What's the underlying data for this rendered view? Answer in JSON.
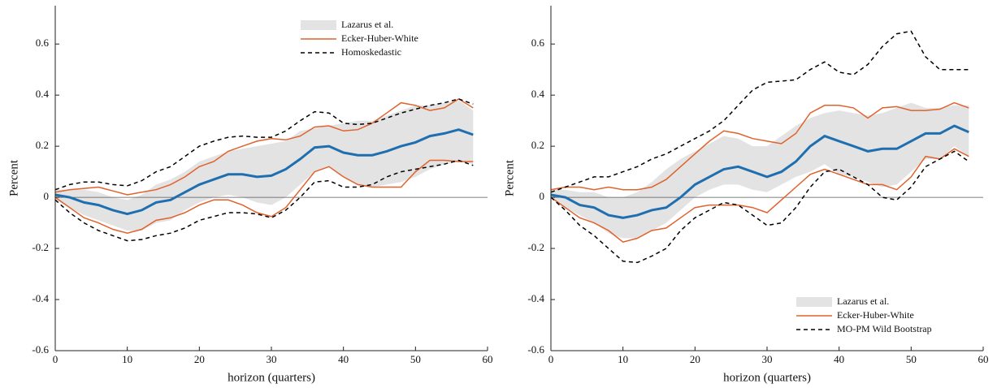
{
  "chart_data": [
    {
      "type": "line",
      "xlabel": "horizon (quarters)",
      "ylabel": "Percent",
      "legend": "upper right",
      "zero_line": true,
      "xlim": [
        0,
        60
      ],
      "xticks": [
        0,
        10,
        20,
        30,
        40,
        50,
        60
      ],
      "ylim": [
        -0.6,
        0.75
      ],
      "yticks": [
        -0.6,
        -0.4,
        -0.2,
        0,
        0.2,
        0.4,
        0.6
      ],
      "x": [
        0,
        2,
        4,
        6,
        8,
        10,
        12,
        14,
        16,
        18,
        20,
        22,
        24,
        26,
        28,
        30,
        32,
        34,
        36,
        38,
        40,
        42,
        44,
        46,
        48,
        50,
        52,
        54,
        56,
        58
      ],
      "series": [
        {
          "name": "Lazarus et al.",
          "type": "band",
          "color": "#e3e3e3",
          "upper": [
            0.03,
            0.03,
            0.03,
            0.02,
            0.0,
            -0.01,
            0.01,
            0.05,
            0.07,
            0.1,
            0.14,
            0.16,
            0.18,
            0.19,
            0.2,
            0.21,
            0.22,
            0.26,
            0.27,
            0.28,
            0.29,
            0.3,
            0.3,
            0.32,
            0.34,
            0.36,
            0.36,
            0.37,
            0.38,
            0.34
          ],
          "lower": [
            -0.01,
            -0.04,
            -0.07,
            -0.09,
            -0.11,
            -0.13,
            -0.13,
            -0.1,
            -0.09,
            -0.05,
            -0.02,
            0.0,
            0.01,
            0.0,
            -0.02,
            -0.03,
            0.0,
            0.05,
            0.1,
            0.12,
            0.08,
            0.05,
            0.04,
            0.05,
            0.06,
            0.08,
            0.11,
            0.13,
            0.14,
            0.13
          ]
        },
        {
          "name": "Ecker-Huber-White",
          "type": "interval",
          "color": "#e0622c",
          "dash": false,
          "upper": [
            0.02,
            0.03,
            0.035,
            0.04,
            0.025,
            0.01,
            0.02,
            0.03,
            0.05,
            0.08,
            0.12,
            0.14,
            0.18,
            0.2,
            0.22,
            0.23,
            0.225,
            0.24,
            0.275,
            0.28,
            0.26,
            0.265,
            0.29,
            0.33,
            0.37,
            0.36,
            0.34,
            0.35,
            0.385,
            0.35
          ],
          "lower": [
            0.0,
            -0.04,
            -0.08,
            -0.1,
            -0.125,
            -0.14,
            -0.125,
            -0.09,
            -0.08,
            -0.06,
            -0.03,
            -0.01,
            -0.01,
            -0.03,
            -0.06,
            -0.075,
            -0.04,
            0.03,
            0.1,
            0.12,
            0.08,
            0.05,
            0.04,
            0.04,
            0.04,
            0.1,
            0.145,
            0.145,
            0.14,
            0.14
          ]
        },
        {
          "name": "Homoskedastic",
          "type": "interval",
          "color": "#000000",
          "dash": true,
          "upper": [
            0.03,
            0.05,
            0.06,
            0.06,
            0.05,
            0.045,
            0.065,
            0.1,
            0.12,
            0.16,
            0.2,
            0.22,
            0.235,
            0.24,
            0.235,
            0.235,
            0.26,
            0.3,
            0.335,
            0.33,
            0.29,
            0.285,
            0.29,
            0.31,
            0.33,
            0.345,
            0.36,
            0.37,
            0.385,
            0.365
          ],
          "lower": [
            -0.01,
            -0.06,
            -0.1,
            -0.13,
            -0.15,
            -0.17,
            -0.165,
            -0.15,
            -0.14,
            -0.12,
            -0.09,
            -0.075,
            -0.06,
            -0.06,
            -0.065,
            -0.08,
            -0.05,
            0.0,
            0.06,
            0.065,
            0.04,
            0.04,
            0.05,
            0.08,
            0.1,
            0.11,
            0.12,
            0.13,
            0.145,
            0.125
          ]
        },
        {
          "type": "point",
          "color": "#1f6fb0",
          "values": [
            0.01,
            0.0,
            -0.02,
            -0.03,
            -0.05,
            -0.065,
            -0.05,
            -0.02,
            -0.01,
            0.02,
            0.05,
            0.07,
            0.09,
            0.09,
            0.08,
            0.085,
            0.11,
            0.15,
            0.195,
            0.2,
            0.175,
            0.165,
            0.165,
            0.18,
            0.2,
            0.215,
            0.24,
            0.25,
            0.265,
            0.245
          ]
        }
      ]
    },
    {
      "type": "line",
      "xlabel": "horizon (quarters)",
      "ylabel": "Percent",
      "legend": "lower right",
      "zero_line": true,
      "xlim": [
        0,
        60
      ],
      "xticks": [
        0,
        10,
        20,
        30,
        40,
        50,
        60
      ],
      "ylim": [
        -0.6,
        0.75
      ],
      "yticks": [
        -0.6,
        -0.4,
        -0.2,
        0,
        0.2,
        0.4,
        0.6
      ],
      "x": [
        0,
        2,
        4,
        6,
        8,
        10,
        12,
        14,
        16,
        18,
        20,
        22,
        24,
        26,
        28,
        30,
        32,
        34,
        36,
        38,
        40,
        42,
        44,
        46,
        48,
        50,
        52,
        54,
        56,
        58
      ],
      "series": [
        {
          "name": "Lazarus et al.",
          "type": "band",
          "color": "#e3e3e3",
          "upper": [
            0.03,
            0.03,
            0.02,
            0.02,
            0.0,
            0.0,
            0.02,
            0.06,
            0.11,
            0.15,
            0.18,
            0.21,
            0.24,
            0.23,
            0.2,
            0.2,
            0.24,
            0.28,
            0.31,
            0.33,
            0.34,
            0.33,
            0.32,
            0.33,
            0.35,
            0.37,
            0.35,
            0.35,
            0.36,
            0.36
          ],
          "lower": [
            0.0,
            -0.04,
            -0.07,
            -0.1,
            -0.14,
            -0.16,
            -0.16,
            -0.13,
            -0.1,
            -0.05,
            0.0,
            0.03,
            0.05,
            0.05,
            0.03,
            0.02,
            0.05,
            0.08,
            0.1,
            0.13,
            0.09,
            0.08,
            0.06,
            0.04,
            0.05,
            0.1,
            0.15,
            0.15,
            0.2,
            0.16
          ]
        },
        {
          "name": "Ecker-Huber-White",
          "type": "interval",
          "color": "#e0622c",
          "dash": false,
          "upper": [
            0.03,
            0.04,
            0.04,
            0.03,
            0.04,
            0.03,
            0.03,
            0.04,
            0.07,
            0.12,
            0.17,
            0.22,
            0.26,
            0.25,
            0.23,
            0.22,
            0.21,
            0.25,
            0.33,
            0.36,
            0.36,
            0.35,
            0.31,
            0.35,
            0.355,
            0.34,
            0.34,
            0.345,
            0.37,
            0.35
          ],
          "lower": [
            0.0,
            -0.04,
            -0.08,
            -0.1,
            -0.13,
            -0.175,
            -0.16,
            -0.13,
            -0.12,
            -0.08,
            -0.04,
            -0.03,
            -0.03,
            -0.03,
            -0.04,
            -0.06,
            -0.01,
            0.04,
            0.09,
            0.11,
            0.09,
            0.07,
            0.05,
            0.05,
            0.03,
            0.08,
            0.16,
            0.15,
            0.19,
            0.16
          ]
        },
        {
          "name": "MO-PM Wild Bootstrap",
          "type": "interval",
          "color": "#000000",
          "dash": true,
          "upper": [
            0.02,
            0.04,
            0.06,
            0.08,
            0.08,
            0.1,
            0.12,
            0.15,
            0.17,
            0.2,
            0.23,
            0.26,
            0.3,
            0.36,
            0.42,
            0.45,
            0.455,
            0.46,
            0.5,
            0.53,
            0.49,
            0.48,
            0.52,
            0.59,
            0.64,
            0.65,
            0.55,
            0.5,
            0.5,
            0.5
          ],
          "lower": [
            0.0,
            -0.05,
            -0.11,
            -0.15,
            -0.2,
            -0.25,
            -0.255,
            -0.23,
            -0.2,
            -0.13,
            -0.08,
            -0.05,
            -0.02,
            -0.03,
            -0.07,
            -0.11,
            -0.1,
            -0.04,
            0.04,
            0.1,
            0.11,
            0.08,
            0.05,
            0.0,
            -0.01,
            0.04,
            0.12,
            0.15,
            0.18,
            0.14
          ]
        },
        {
          "type": "point",
          "color": "#1f6fb0",
          "values": [
            0.01,
            0.0,
            -0.03,
            -0.04,
            -0.07,
            -0.08,
            -0.07,
            -0.05,
            -0.04,
            0.0,
            0.05,
            0.08,
            0.11,
            0.12,
            0.1,
            0.08,
            0.1,
            0.14,
            0.2,
            0.24,
            0.22,
            0.2,
            0.18,
            0.19,
            0.19,
            0.22,
            0.25,
            0.25,
            0.28,
            0.255
          ]
        }
      ]
    }
  ]
}
